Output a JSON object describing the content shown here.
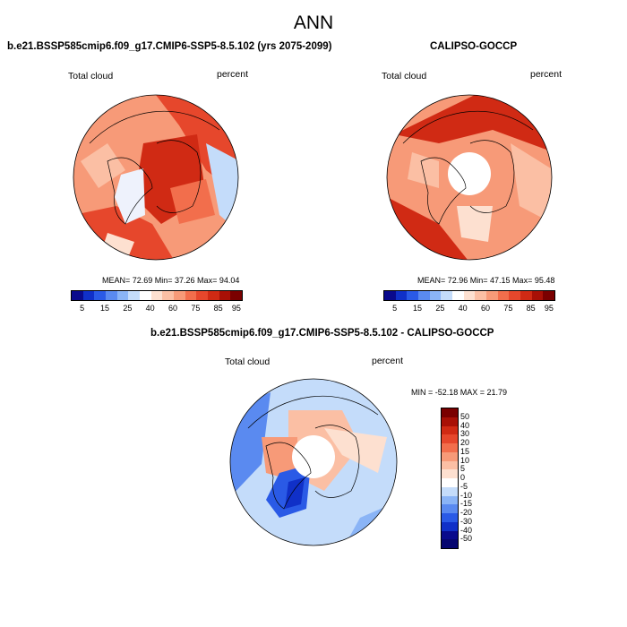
{
  "title": "ANN",
  "panels": [
    {
      "title": "b.e21.BSSP585cmip6.f09_g17.CMIP6-SSP5-8.5.102 (yrs 2075-2099)",
      "left_label": "Total cloud",
      "right_label": "percent",
      "stats": "MEAN=  72.69  Min=  37.26  Max=  94.04"
    },
    {
      "title": "CALIPSO-GOCCP",
      "left_label": "Total cloud",
      "right_label": "percent",
      "stats": "MEAN=  72.96  Min=  47.15  Max=  95.48"
    },
    {
      "title": "b.e21.BSSP585cmip6.f09_g17.CMIP6-SSP5-8.5.102 - CALIPSO-GOCCP",
      "left_label": "Total cloud",
      "right_label": "percent",
      "stats": "MIN = -52.18 MAX =  21.79"
    }
  ],
  "colorbar_top": {
    "labels": [
      "5",
      "15",
      "25",
      "40",
      "60",
      "75",
      "85",
      "95"
    ],
    "colors": [
      "#0a0a8c",
      "#1030c8",
      "#2a5ae6",
      "#5a8af0",
      "#8ab4f6",
      "#c4dcfa",
      "#ffffff",
      "#fde0d0",
      "#fbbfa4",
      "#f79a78",
      "#f26e4c",
      "#e6472c",
      "#d02a14",
      "#a81006",
      "#7a0000"
    ]
  },
  "colorbar_diff": {
    "labels": [
      "50",
      "40",
      "30",
      "20",
      "15",
      "10",
      "5",
      "0",
      "-5",
      "-10",
      "-15",
      "-20",
      "-30",
      "-40",
      "-50"
    ],
    "colors": [
      "#7a0000",
      "#a81006",
      "#d02a14",
      "#e6472c",
      "#f26e4c",
      "#f79a78",
      "#fbbfa4",
      "#fde0d0",
      "#ffffff",
      "#c4dcfa",
      "#8ab4f6",
      "#5a8af0",
      "#2a5ae6",
      "#1030c8",
      "#0a0a8c",
      "#060670"
    ]
  }
}
